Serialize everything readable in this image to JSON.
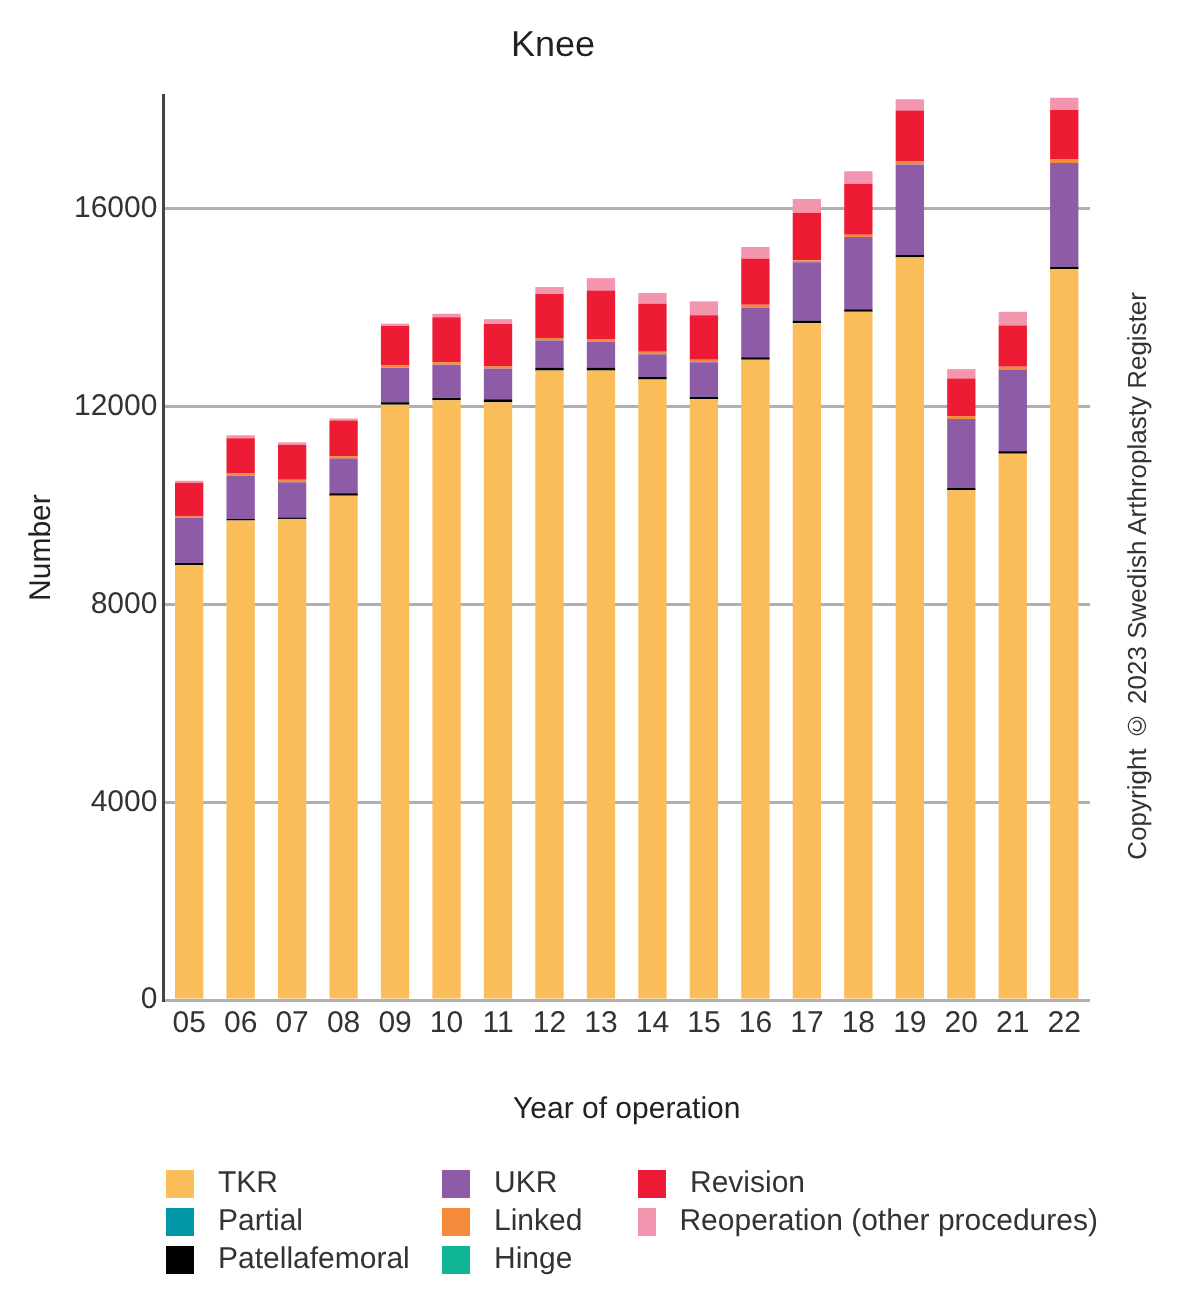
{
  "chart_data": {
    "type": "bar",
    "title": "Knee",
    "xlabel": "Year of operation",
    "ylabel": "Number",
    "categories": [
      "05",
      "06",
      "07",
      "08",
      "09",
      "10",
      "11",
      "12",
      "13",
      "14",
      "15",
      "16",
      "17",
      "18",
      "19",
      "20",
      "21",
      "22"
    ],
    "stacked": true,
    "ylim": [
      0,
      18300
    ],
    "yticks": [
      0,
      4000,
      8000,
      12000,
      16000
    ],
    "grid": "y",
    "legend": "bottom",
    "annotations": [
      "Copyright © 2023 Swedish Arthroplasty Register"
    ],
    "series": [
      {
        "name": "TKR",
        "color": "#fbbc5a",
        "values": [
          8800,
          9700,
          9730,
          10200,
          12040,
          12130,
          12090,
          12730,
          12730,
          12550,
          12150,
          12950,
          13690,
          13920,
          15020,
          10310,
          11050,
          14780
        ]
      },
      {
        "name": "Partial",
        "color": "#0097a7",
        "values": [
          0,
          0,
          0,
          0,
          0,
          0,
          0,
          0,
          0,
          0,
          0,
          0,
          0,
          0,
          0,
          0,
          0,
          0
        ]
      },
      {
        "name": "Patellafemoral",
        "color": "#000000",
        "values": [
          40,
          30,
          30,
          50,
          50,
          50,
          60,
          60,
          60,
          50,
          50,
          50,
          50,
          50,
          50,
          50,
          50,
          50
        ]
      },
      {
        "name": "UKR",
        "color": "#8e5ba6",
        "values": [
          910,
          880,
          710,
          700,
          700,
          670,
          620,
          550,
          520,
          460,
          700,
          1000,
          1180,
          1460,
          1830,
          1390,
          1650,
          2100
        ]
      },
      {
        "name": "Linked",
        "color": "#f58a3a",
        "values": [
          30,
          50,
          50,
          50,
          50,
          50,
          50,
          50,
          50,
          50,
          50,
          60,
          40,
          50,
          70,
          60,
          60,
          70
        ]
      },
      {
        "name": "Hinge",
        "color": "#10b694",
        "values": [
          0,
          0,
          0,
          0,
          0,
          0,
          0,
          0,
          0,
          0,
          0,
          0,
          0,
          0,
          0,
          0,
          0,
          0
        ]
      },
      {
        "name": "Revision",
        "color": "#ed1c34",
        "values": [
          680,
          700,
          710,
          720,
          790,
          910,
          850,
          890,
          990,
          970,
          900,
          930,
          960,
          1030,
          1020,
          760,
          830,
          1000
        ]
      },
      {
        "name": "Reoperation (other procedures)",
        "color": "#f495b0",
        "values": [
          40,
          60,
          50,
          40,
          50,
          70,
          100,
          140,
          250,
          220,
          280,
          240,
          280,
          250,
          230,
          190,
          280,
          250
        ]
      }
    ]
  }
}
